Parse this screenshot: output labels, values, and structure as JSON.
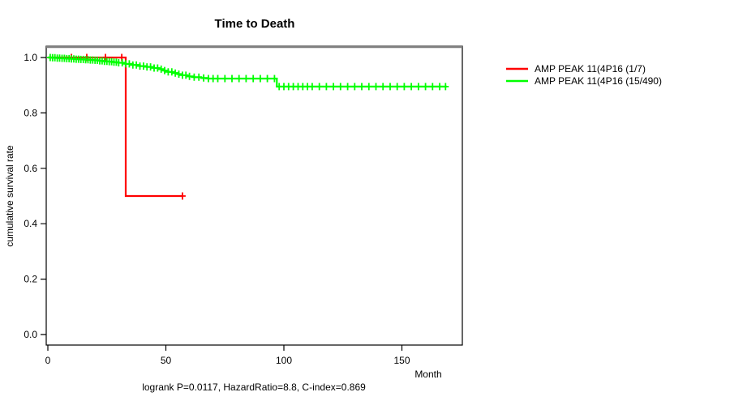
{
  "title": "Time to Death",
  "annotation": "logrank P=0.0117, HazardRatio=8.8, C-index=0.869",
  "xlabel": "Month",
  "ylabel": "cumulative survival rate",
  "colors": {
    "series_red": "#ff0000",
    "series_green": "#00ff00",
    "axis": "#000000",
    "top_border": "#808080",
    "background": "#ffffff"
  },
  "legend": {
    "items": [
      {
        "label": "AMP PEAK 11(4P16 (1/7)",
        "color": "#ff0000"
      },
      {
        "label": "AMP PEAK 11(4P16 (15/490)",
        "color": "#00ff00"
      }
    ]
  },
  "x_tick_labels": [
    "0",
    "50",
    "100",
    "150"
  ],
  "y_tick_labels": [
    "0.0",
    "0.2",
    "0.4",
    "0.6",
    "0.8",
    "1.0"
  ],
  "chart_data": {
    "type": "line",
    "subtype": "kaplan-meier-step-survival",
    "title": "Time to Death",
    "xlabel": "Month",
    "ylabel": "cumulative survival rate",
    "annotation": "logrank P=0.0117, HazardRatio=8.8, C-index=0.869",
    "xlim": [
      0,
      176
    ],
    "ylim": [
      0,
      1
    ],
    "x_ticks": [
      0,
      50,
      100,
      150
    ],
    "y_ticks": [
      0.0,
      0.2,
      0.4,
      0.6,
      0.8,
      1.0
    ],
    "grid": false,
    "legend_position": "right-outside",
    "series": [
      {
        "name": "AMP PEAK 11(4P16 (1/7)",
        "color": "#ff0000",
        "steps": [
          [
            0,
            1.0
          ],
          [
            33,
            0.5
          ]
        ],
        "end_x": 57,
        "censor_x": [
          10,
          16.5,
          24.4,
          31.3,
          57
        ]
      },
      {
        "name": "AMP PEAK 11(4P16 (15/490)",
        "color": "#00ff00",
        "steps": [
          [
            0,
            1.0
          ],
          [
            2,
            0.999
          ],
          [
            4,
            0.998
          ],
          [
            6,
            0.997
          ],
          [
            8,
            0.996
          ],
          [
            10,
            0.995
          ],
          [
            12,
            0.994
          ],
          [
            14,
            0.993
          ],
          [
            16,
            0.992
          ],
          [
            18,
            0.991
          ],
          [
            20,
            0.99
          ],
          [
            22,
            0.988
          ],
          [
            24,
            0.986
          ],
          [
            26,
            0.985
          ],
          [
            28,
            0.983
          ],
          [
            30,
            0.981
          ],
          [
            33,
            0.977
          ],
          [
            36,
            0.973
          ],
          [
            39,
            0.969
          ],
          [
            42,
            0.966
          ],
          [
            45,
            0.962
          ],
          [
            47,
            0.958
          ],
          [
            49,
            0.953
          ],
          [
            51,
            0.948
          ],
          [
            53,
            0.944
          ],
          [
            55,
            0.94
          ],
          [
            57,
            0.936
          ],
          [
            59,
            0.932
          ],
          [
            62,
            0.929
          ],
          [
            65,
            0.926
          ],
          [
            68,
            0.924
          ],
          [
            97,
            0.895
          ]
        ],
        "end_x": 169,
        "censor_x": [
          1,
          2,
          3,
          4,
          5,
          6,
          7,
          8,
          9,
          10,
          11,
          12,
          13,
          14,
          15,
          16,
          17,
          18,
          19,
          20,
          21,
          22,
          23,
          24,
          25,
          26,
          27,
          28,
          29,
          30,
          31.5,
          33,
          34.5,
          36,
          37.5,
          39,
          40.5,
          42,
          43.5,
          45,
          46.5,
          48,
          49.5,
          51,
          52.5,
          54,
          55.5,
          57,
          58.5,
          60,
          62,
          64,
          66,
          68,
          70,
          72,
          75,
          78,
          81,
          84,
          87,
          90,
          93,
          96,
          98,
          100,
          102,
          104,
          106,
          108,
          110,
          112,
          115,
          118,
          121,
          124,
          127,
          130,
          133,
          136,
          139,
          142,
          145,
          148,
          151,
          154,
          157,
          160,
          163,
          166,
          168.5
        ]
      }
    ]
  }
}
